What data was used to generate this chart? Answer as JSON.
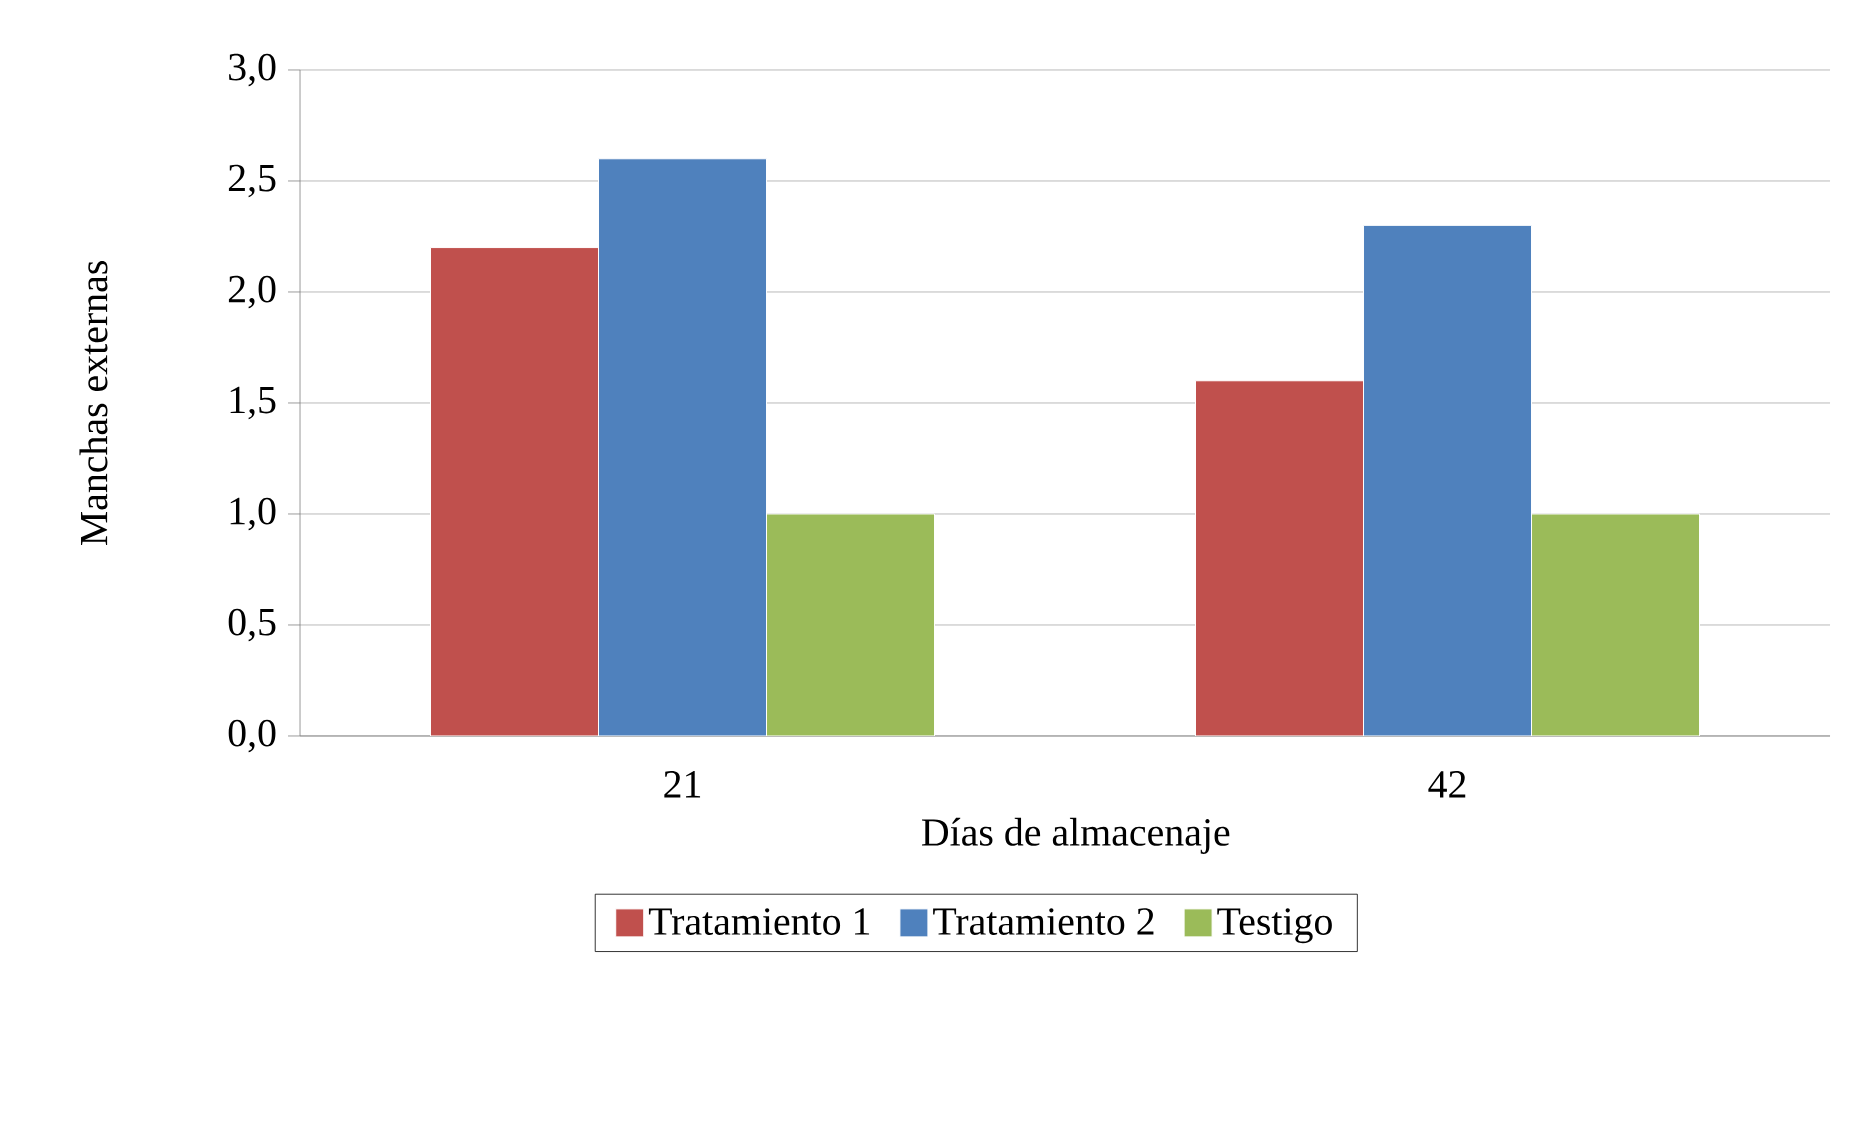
{
  "chart_data": {
    "type": "bar",
    "xlabel": "Días de almacenaje",
    "ylabel": "Manchas externas",
    "categories": [
      "21",
      "42"
    ],
    "series": [
      {
        "name": "Tratamiento 1",
        "color": "#c0504d",
        "values": [
          2.2,
          1.6
        ]
      },
      {
        "name": "Tratamiento 2",
        "color": "#4f81bd",
        "values": [
          2.6,
          2.3
        ]
      },
      {
        "name": "Testigo",
        "color": "#9bbb59",
        "values": [
          1.0,
          1.0
        ]
      }
    ],
    "ylim": [
      0,
      3
    ],
    "yticks": [
      {
        "value": 0,
        "label": "0,0"
      },
      {
        "value": 0.5,
        "label": "0,5"
      },
      {
        "value": 1,
        "label": "1,0"
      },
      {
        "value": 1.5,
        "label": "1,5"
      },
      {
        "value": 2,
        "label": "2,0"
      },
      {
        "value": 2.5,
        "label": "2,5"
      },
      {
        "value": 3,
        "label": "3,0"
      }
    ],
    "grid": "y",
    "legend": "bottom"
  }
}
